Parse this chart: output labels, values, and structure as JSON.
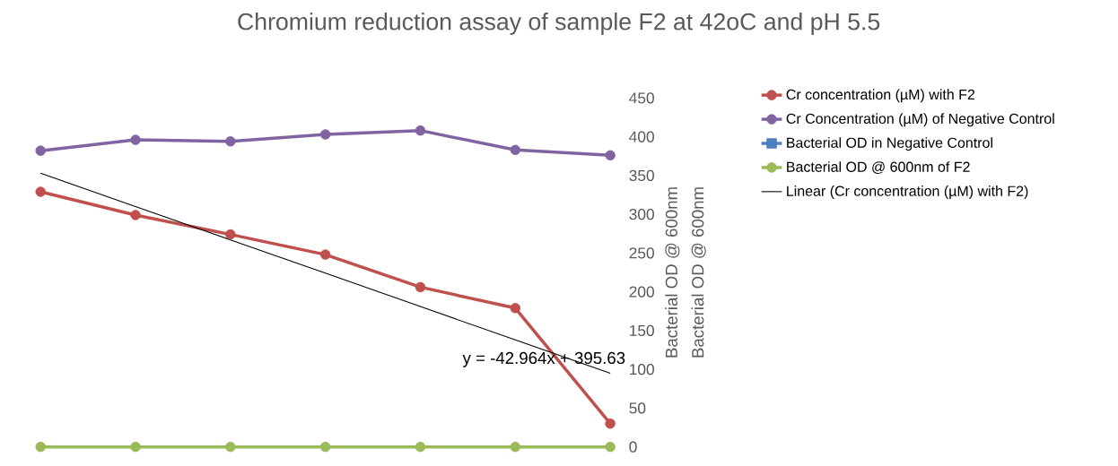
{
  "chart_data": {
    "type": "line",
    "title": "Chromium reduction assay of sample F2 at 42oC and pH 5.5",
    "ylabel": "Bacterial OD @ 600nm",
    "y2label": "Bacterial OD @ 600nm",
    "categories": [
      null,
      null,
      null,
      null,
      null,
      null,
      null
    ],
    "series": [
      {
        "name": "Cr concentration (µM) with F2",
        "color": "#c0504d",
        "marker": "circle",
        "values": [
          329,
          299,
          274,
          248,
          206,
          179,
          30
        ]
      },
      {
        "name": "Cr Concentration (µM) of Negative Control",
        "color": "#8064a2",
        "marker": "circle",
        "values": [
          382,
          396,
          394,
          403,
          408,
          383,
          376
        ]
      },
      {
        "name": "Bacterial OD in Negative Control",
        "color": "#4f81bd",
        "marker": "square",
        "values": [
          null,
          null,
          null,
          null,
          null,
          null,
          null
        ]
      },
      {
        "name": "Bacterial OD @ 600nm of F2",
        "color": "#9bbb59",
        "marker": "circle",
        "values": [
          0,
          0,
          0,
          0,
          0,
          0,
          0
        ]
      },
      {
        "name": "Linear (Cr concentration (µM) with F2)",
        "color": "#000000",
        "marker": "none",
        "values": [
          353,
          310,
          267,
          224,
          181,
          138,
          95
        ]
      }
    ],
    "annotations": [
      "y = -42.964x + 395.63"
    ],
    "ylim": [
      0,
      450
    ],
    "yticks": [
      0,
      50,
      100,
      150,
      200,
      250,
      300,
      350,
      400,
      450
    ],
    "grid": false,
    "legend": "right",
    "tick_labels": "y"
  }
}
